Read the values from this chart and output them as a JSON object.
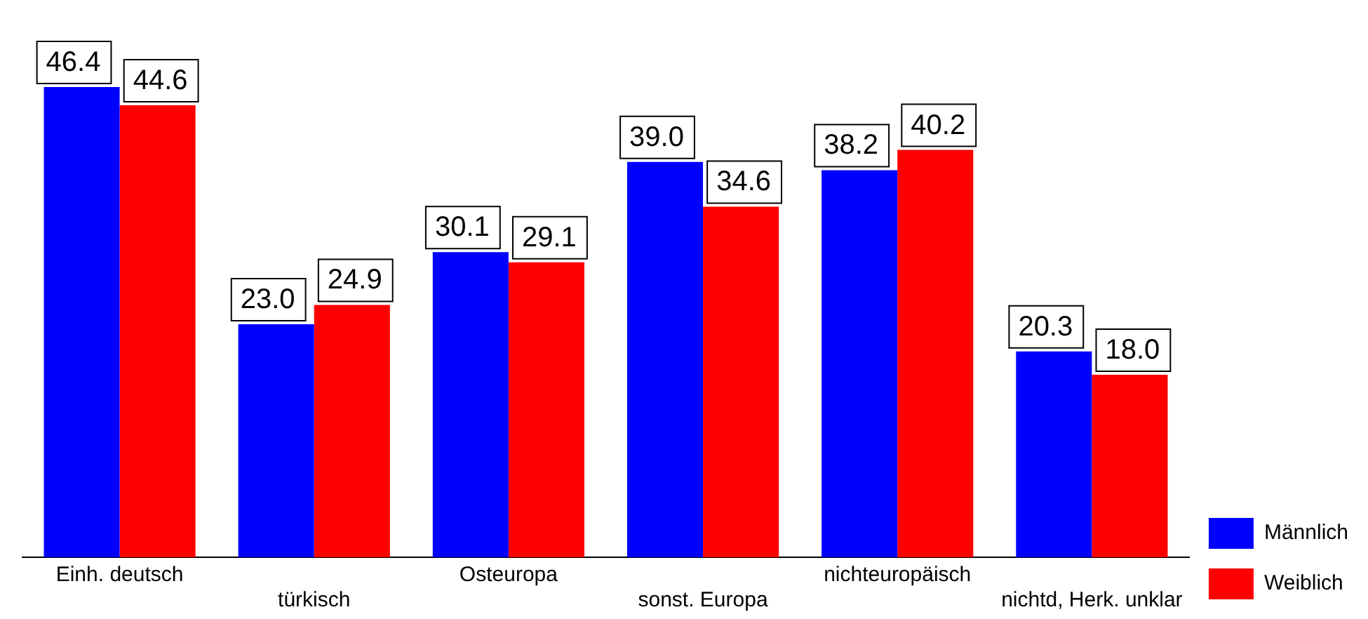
{
  "chart_data": {
    "type": "bar",
    "categories": [
      "Einh. deutsch",
      "türkisch",
      "Osteuropa",
      "sonst. Europa",
      "nichteuropäisch",
      "nichtd, Herk. unklar"
    ],
    "series": [
      {
        "name": "Männlich",
        "color": "#0000ff",
        "values": [
          46.4,
          23.0,
          30.1,
          39.0,
          38.2,
          20.3
        ],
        "value_labels": [
          "46.4",
          "23.0",
          "30.1",
          "39.0",
          "38.2",
          "20.3"
        ]
      },
      {
        "name": "Weiblich",
        "color": "#ff0000",
        "values": [
          44.6,
          24.9,
          29.1,
          34.6,
          40.2,
          18.0
        ],
        "value_labels": [
          "44.6",
          "24.9",
          "29.1",
          "34.6",
          "40.2",
          "18.0"
        ]
      }
    ],
    "grid": false,
    "legend": "right"
  }
}
